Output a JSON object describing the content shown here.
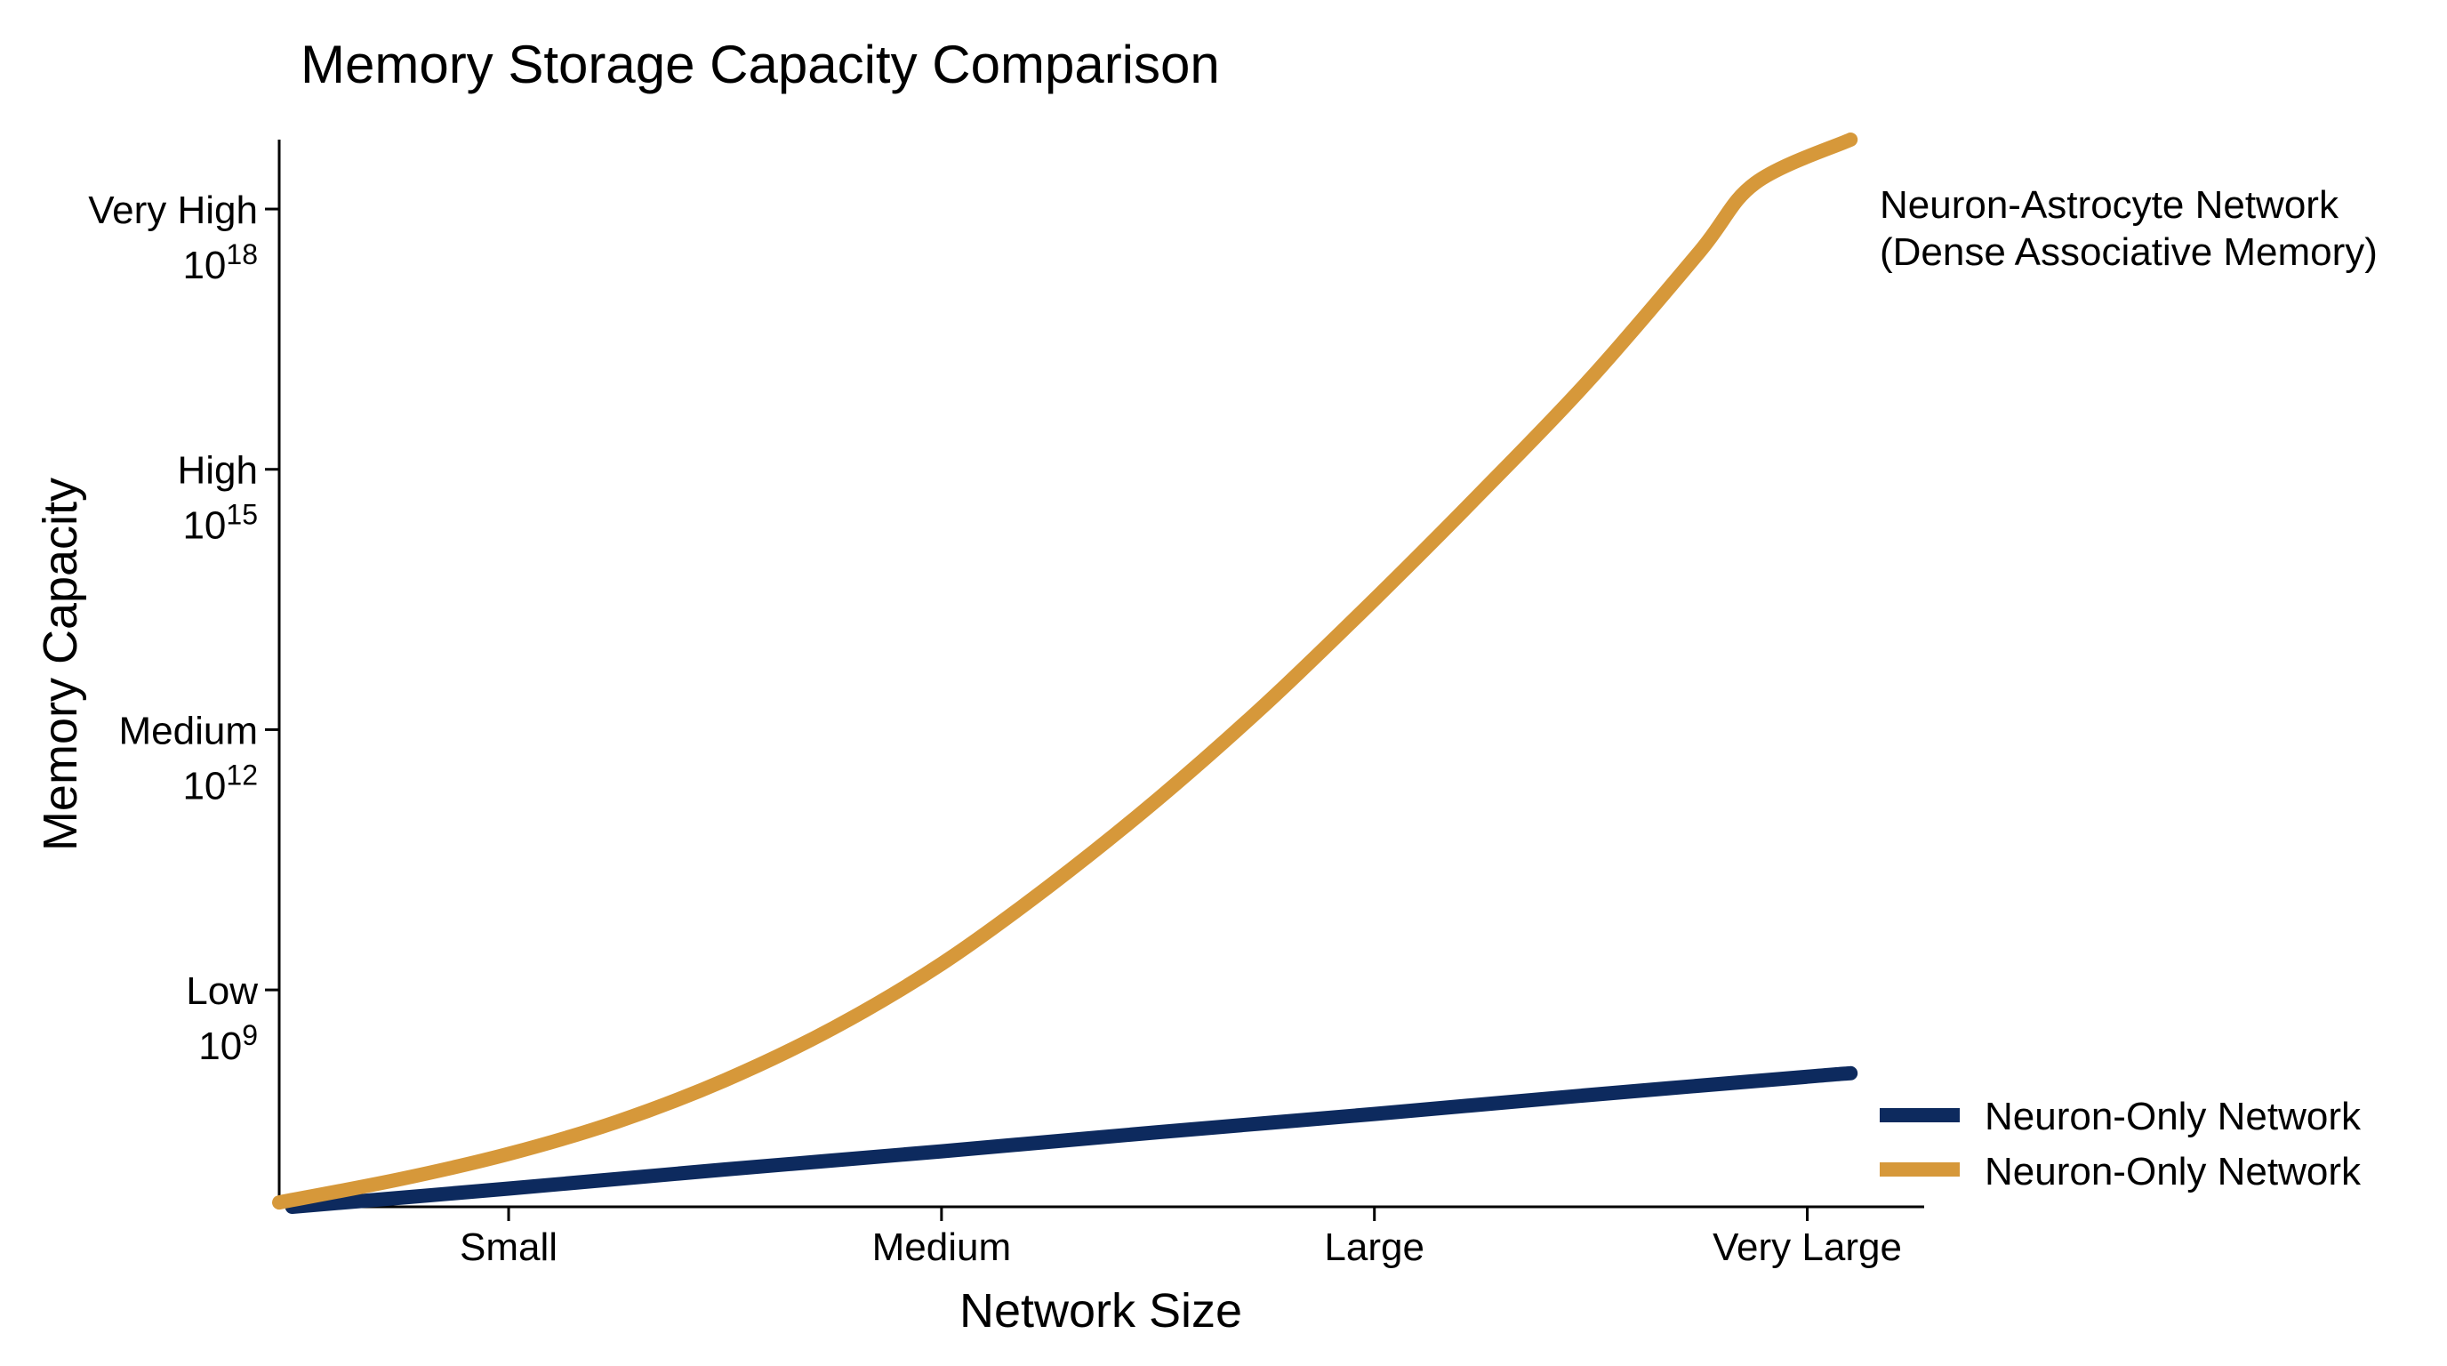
{
  "chart_data": {
    "type": "line",
    "title": "Memory Storage Capacity Comparison",
    "xlabel": "Network Size",
    "ylabel": "Memory Capacity",
    "x_categories": [
      "Small",
      "Medium",
      "Large",
      "Very Large"
    ],
    "y_ticks": [
      {
        "label": "Low",
        "base": "10",
        "exponent": "9",
        "value": 9
      },
      {
        "label": "Medium",
        "base": "10",
        "exponent": "12",
        "value": 12
      },
      {
        "label": "High",
        "base": "10",
        "exponent": "15",
        "value": 15
      },
      {
        "label": "Very High",
        "base": "10",
        "exponent": "18",
        "value": 18
      }
    ],
    "ylim": [
      6.5,
      18.8
    ],
    "xlim": [
      0.47,
      4.27
    ],
    "grid": false,
    "legend_position": "bottom-right",
    "legend_entries": [
      "Neuron-Only Network",
      "Neuron-Only Network"
    ],
    "annotation": [
      "Neuron-Astrocyte Network",
      "(Dense Associative Memory)"
    ],
    "series": [
      {
        "color": "#0d2a5e",
        "points": [
          [
            0.5,
            6.5
          ],
          [
            1.0,
            6.71
          ],
          [
            1.5,
            6.93
          ],
          [
            2.0,
            7.14
          ],
          [
            2.5,
            7.36
          ],
          [
            3.0,
            7.57
          ],
          [
            3.5,
            7.79
          ],
          [
            4.0,
            8.0
          ],
          [
            4.1,
            8.04
          ]
        ]
      },
      {
        "color": "#d6983a",
        "points": [
          [
            0.47,
            6.55
          ],
          [
            0.75,
            6.82
          ],
          [
            1.0,
            7.11
          ],
          [
            1.25,
            7.48
          ],
          [
            1.5,
            7.96
          ],
          [
            1.75,
            8.56
          ],
          [
            2.0,
            9.3
          ],
          [
            2.25,
            10.2
          ],
          [
            2.5,
            11.2
          ],
          [
            2.75,
            12.3
          ],
          [
            3.0,
            13.5
          ],
          [
            3.25,
            14.75
          ],
          [
            3.5,
            16.05
          ],
          [
            3.75,
            17.5
          ],
          [
            3.88,
            18.3
          ],
          [
            4.1,
            18.8
          ]
        ]
      }
    ]
  }
}
